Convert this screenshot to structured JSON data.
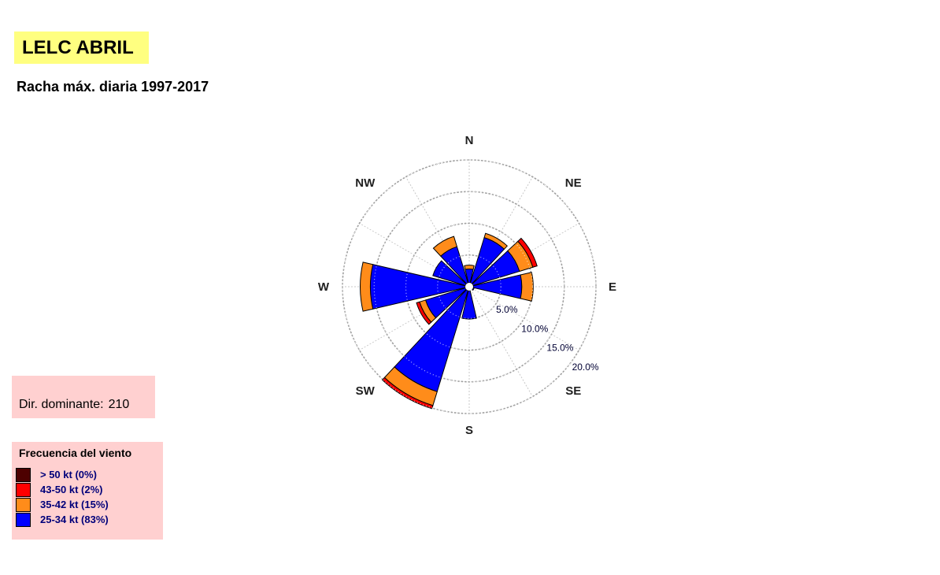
{
  "header": {
    "title": "LELC ABRIL",
    "subtitle": "Racha máx. diaria 1997-2017"
  },
  "dominant": {
    "label": "Dir. dominante:",
    "value": "210"
  },
  "legend": {
    "title": "Frecuencia del viento",
    "items": [
      {
        "label": "> 50 kt (0%)",
        "color": "#4d0000"
      },
      {
        "label": "43-50 kt (2%)",
        "color": "#ff0000"
      },
      {
        "label": "35-42 kt (15%)",
        "color": "#ff8c1a"
      },
      {
        "label": "25-34 kt (83%)",
        "color": "#0000ff"
      }
    ]
  },
  "chart_data": {
    "type": "wind-rose",
    "compass_labels": [
      "N",
      "NE",
      "E",
      "SE",
      "S",
      "SW",
      "W",
      "NW"
    ],
    "ring_labels": [
      "5.0%",
      "10.0%",
      "15.0%",
      "20.0%"
    ],
    "ring_values": [
      5,
      10,
      15,
      20
    ],
    "grid": true,
    "series": [
      {
        "name": "25-34 kt",
        "color": "#0000ff"
      },
      {
        "name": "35-42 kt",
        "color": "#ff8c1a"
      },
      {
        "name": "43-50 kt",
        "color": "#ff0000"
      },
      {
        "name": "> 50 kt",
        "color": "#4d0000"
      }
    ],
    "sectors": [
      {
        "dir": 0,
        "values": [
          2.8,
          0.6,
          0.0,
          0.0
        ]
      },
      {
        "dir": 30,
        "values": [
          8.1,
          0.7,
          0.0,
          0.0
        ]
      },
      {
        "dir": 60,
        "values": [
          8.3,
          2.2,
          0.7,
          0.0
        ]
      },
      {
        "dir": 90,
        "values": [
          8.3,
          1.8,
          0.0,
          0.0
        ]
      },
      {
        "dir": 120,
        "values": [
          0.8,
          0.0,
          0.0,
          0.0
        ]
      },
      {
        "dir": 150,
        "values": [
          0.0,
          0.0,
          0.0,
          0.0
        ]
      },
      {
        "dir": 180,
        "values": [
          5.1,
          0.0,
          0.0,
          0.0
        ]
      },
      {
        "dir": 210,
        "values": [
          17.3,
          2.3,
          0.5,
          0.0
        ]
      },
      {
        "dir": 240,
        "values": [
          7.2,
          1.0,
          0.5,
          0.0
        ]
      },
      {
        "dir": 270,
        "values": [
          15.6,
          1.6,
          0.0,
          0.0
        ]
      },
      {
        "dir": 300,
        "values": [
          6.0,
          0.0,
          0.0,
          0.0
        ]
      },
      {
        "dir": 330,
        "values": [
          6.6,
          1.7,
          0.0,
          0.0
        ]
      }
    ]
  }
}
